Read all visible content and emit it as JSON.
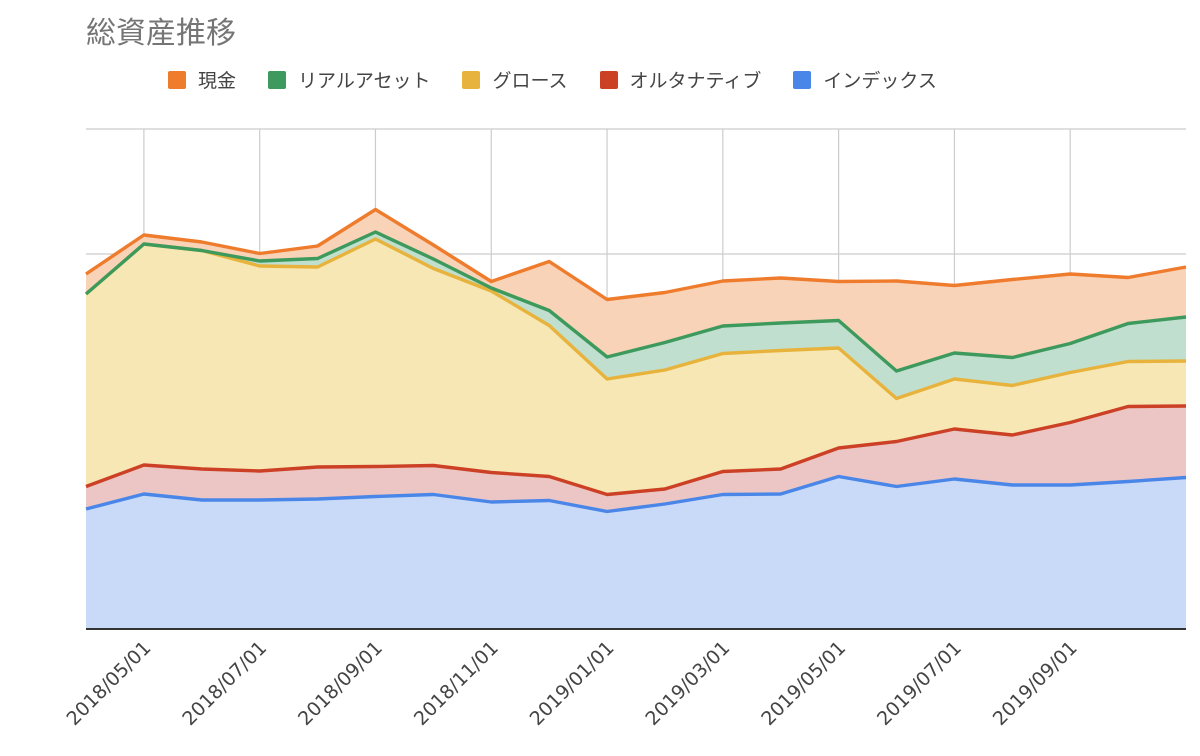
{
  "chart_data": {
    "type": "area",
    "stacked": true,
    "title": "総資産推移",
    "xlabel": "",
    "ylabel": "",
    "ylim": [
      0,
      100
    ],
    "grid": true,
    "legend_position": "top",
    "x": [
      "2018/04/01",
      "2018/05/01",
      "2018/06/01",
      "2018/07/01",
      "2018/08/01",
      "2018/09/01",
      "2018/10/01",
      "2018/11/01",
      "2018/12/01",
      "2019/01/01",
      "2019/02/01",
      "2019/03/01",
      "2019/04/01",
      "2019/05/01",
      "2019/06/01",
      "2019/07/01",
      "2019/08/01",
      "2019/09/01",
      "2019/10/01",
      "2019/11/01"
    ],
    "x_tick_labels": [
      "2018/05/01",
      "2018/07/01",
      "2018/09/01",
      "2018/11/01",
      "2019/01/01",
      "2019/03/01",
      "2019/05/01",
      "2019/07/01",
      "2019/09/01"
    ],
    "series": [
      {
        "name": "インデックス",
        "color": "#4a86e8",
        "fill": "#c9daf8",
        "values": [
          24.0,
          27.0,
          25.8,
          25.8,
          26.0,
          26.5,
          26.9,
          25.4,
          25.7,
          23.5,
          25.0,
          26.9,
          27.0,
          30.5,
          28.5,
          30.0,
          28.8,
          28.8,
          29.5,
          30.3
        ]
      },
      {
        "name": "オルタナティブ",
        "color": "#cc4125",
        "fill": "#ebc6c4",
        "values": [
          4.5,
          5.8,
          6.2,
          5.8,
          6.4,
          6.0,
          5.8,
          5.9,
          4.8,
          3.4,
          3.0,
          4.6,
          5.0,
          5.7,
          9.0,
          10.0,
          10.0,
          12.5,
          15.0,
          14.3
        ]
      },
      {
        "name": "グロース",
        "color": "#e8b33c",
        "fill": "#f7e7b4",
        "values": [
          38.5,
          44.2,
          43.7,
          41.0,
          40.0,
          45.5,
          39.4,
          36.3,
          30.2,
          23.1,
          23.8,
          23.6,
          23.7,
          20.0,
          8.6,
          10.0,
          9.9,
          10.0,
          9.0,
          9.0
        ]
      },
      {
        "name": "リアルアセット",
        "color": "#3d9a5c",
        "fill": "#c0dfcf",
        "values": [
          0.0,
          0.0,
          0.0,
          1.0,
          1.7,
          1.4,
          1.9,
          0.6,
          3.0,
          4.4,
          5.5,
          5.5,
          5.5,
          5.5,
          5.5,
          5.2,
          5.6,
          5.8,
          7.6,
          8.8
        ]
      },
      {
        "name": "現金",
        "color": "#ef7b2c",
        "fill": "#f8d3b8",
        "values": [
          4.0,
          1.8,
          1.7,
          1.5,
          2.5,
          4.5,
          2.8,
          1.3,
          9.8,
          11.5,
          10.0,
          9.0,
          9.0,
          7.8,
          18.0,
          13.5,
          15.6,
          13.9,
          9.2,
          10.0
        ]
      }
    ]
  }
}
